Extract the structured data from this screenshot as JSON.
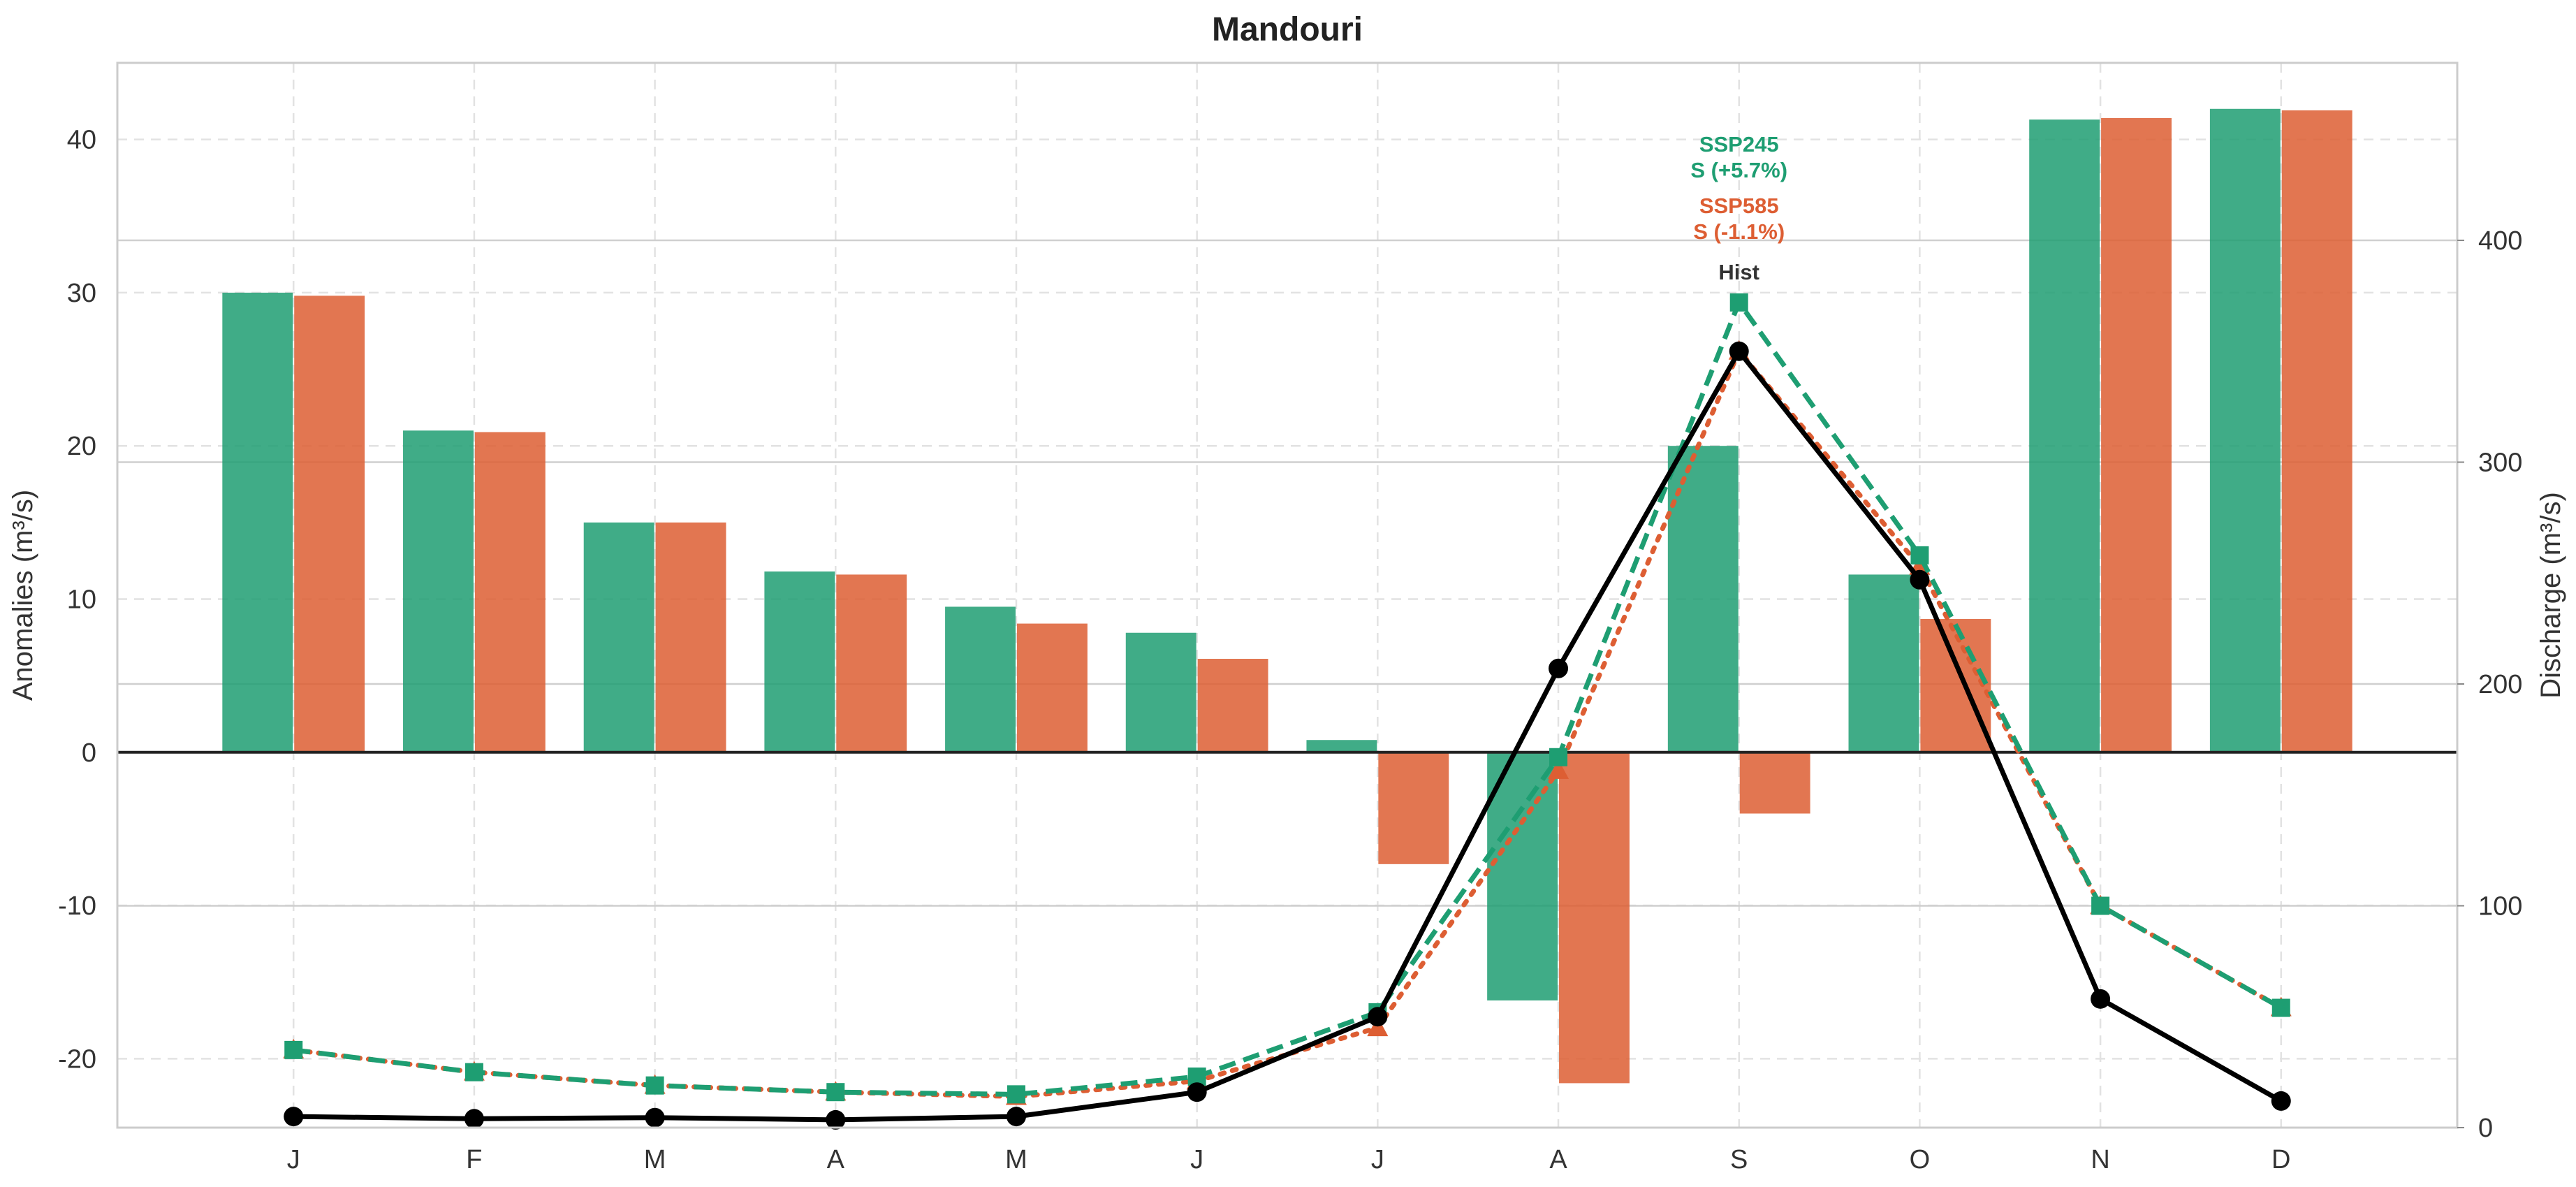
{
  "chart_data": {
    "type": "bar",
    "title": "Mandouri",
    "categories": [
      "J",
      "F",
      "M",
      "A",
      "M",
      "J",
      "J",
      "A",
      "S",
      "O",
      "N",
      "D"
    ],
    "ylabel_left": "Anomalies (m³/s)",
    "ylabel_right": "Discharge (m³/s)",
    "ylim_left": [
      -24.5,
      45
    ],
    "ylim_right": [
      0,
      480
    ],
    "yticks_left": [
      -20,
      -10,
      0,
      10,
      20,
      30,
      40
    ],
    "ytick_labels_left": [
      "-20",
      "-10",
      "0",
      "10",
      "20",
      "30",
      "40"
    ],
    "yticks_right": [
      0,
      100,
      200,
      300,
      400
    ],
    "ytick_labels_right": [
      "0",
      "100",
      "200",
      "300",
      "400"
    ],
    "grid": true,
    "colors": {
      "ssp245": "#1e9e72",
      "ssp585": "#dd5e33",
      "hist": "#000000"
    },
    "bar_series": [
      {
        "key": "ssp245",
        "values": [
          30.0,
          21.0,
          15.0,
          11.8,
          9.5,
          7.8,
          0.8,
          -16.2,
          20.0,
          11.6,
          41.3,
          42.0
        ]
      },
      {
        "key": "ssp585",
        "values": [
          29.8,
          20.9,
          15.0,
          11.6,
          8.4,
          6.1,
          -7.3,
          -21.6,
          -4.0,
          8.7,
          41.4,
          41.9
        ]
      }
    ],
    "line_series": [
      {
        "key": "hist",
        "style": "solid",
        "marker": "circle",
        "values": [
          5,
          4,
          4.5,
          3.5,
          5,
          16,
          50,
          207,
          350,
          247,
          58,
          12
        ]
      },
      {
        "key": "ssp245",
        "style": "dashed",
        "marker": "square",
        "values": [
          35,
          25,
          19,
          16,
          15,
          23,
          52,
          167,
          372,
          258,
          100,
          54
        ]
      },
      {
        "key": "ssp585",
        "style": "dotted",
        "marker": "triangle",
        "values": [
          35,
          25,
          19,
          16,
          14,
          21,
          45,
          161,
          350,
          253,
          100,
          54
        ]
      }
    ],
    "annotations": [
      {
        "lines": [
          "SSP245",
          "S (+5.7%)"
        ],
        "color": "#1e9e72"
      },
      {
        "lines": [
          "SSP585",
          "S (-1.1%)"
        ],
        "color": "#dd5e33"
      },
      {
        "lines": [
          "Hist"
        ],
        "color": "#333333"
      }
    ]
  }
}
